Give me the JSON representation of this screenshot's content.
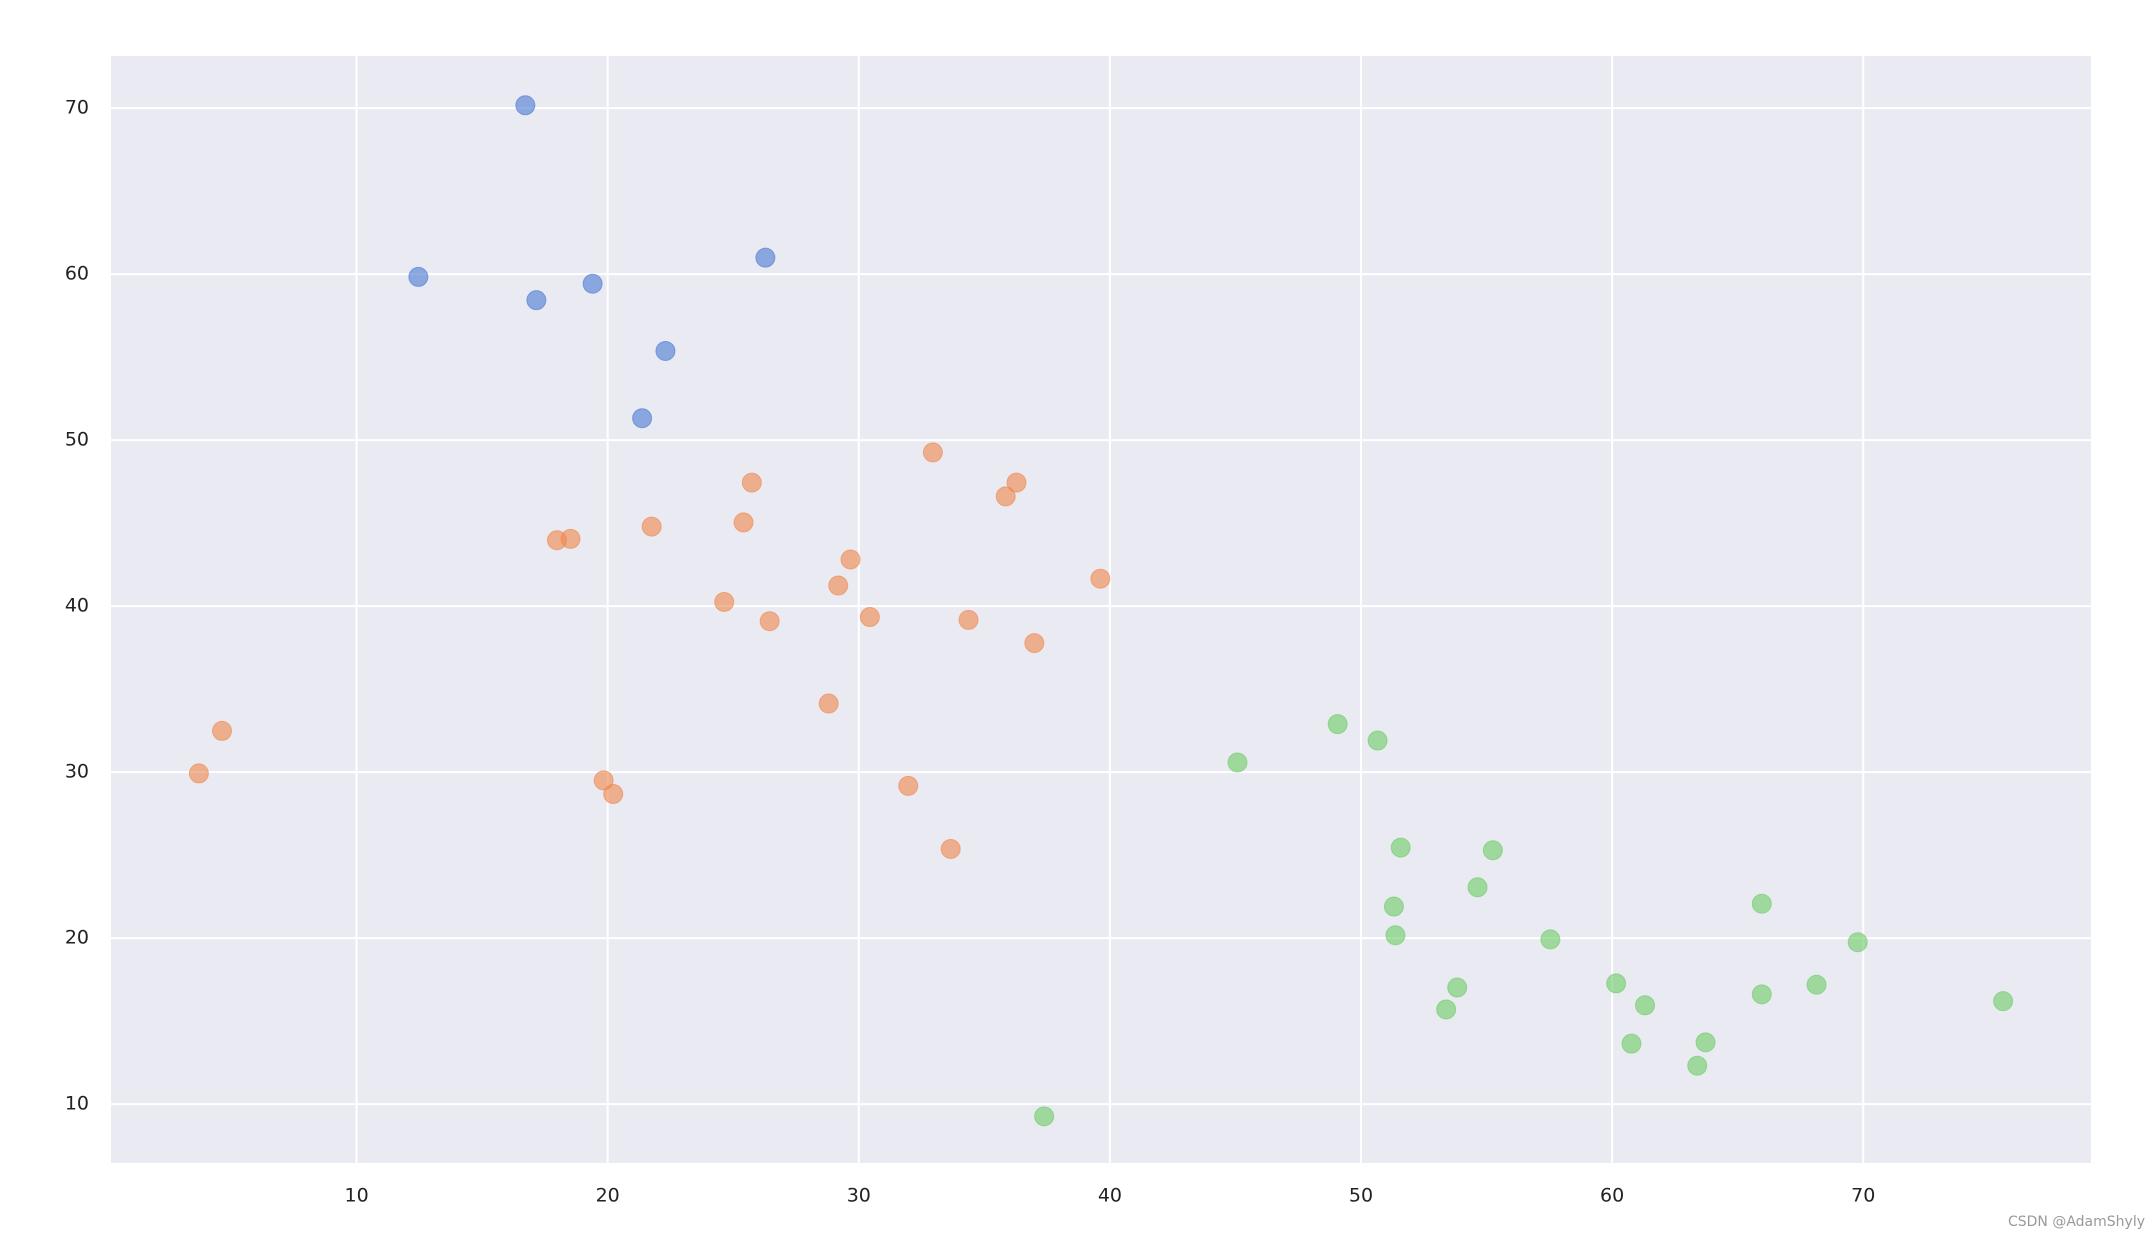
{
  "chart_data": {
    "type": "scatter",
    "xlim": [
      0.22,
      79.07
    ],
    "ylim": [
      6.45,
      73.14
    ],
    "xticks": [
      10,
      20,
      30,
      40,
      50,
      60,
      70
    ],
    "yticks": [
      10,
      20,
      30,
      40,
      50,
      60,
      70
    ],
    "grid": true,
    "series": [
      {
        "color": "#4878d0",
        "x": [
          16.72,
          12.46,
          17.16,
          19.4,
          26.28,
          22.3,
          21.37
        ],
        "values": [
          70.17,
          59.83,
          58.43,
          59.42,
          60.99,
          55.37,
          51.32
        ]
      },
      {
        "color": "#ee854a",
        "x": [
          3.72,
          4.64,
          17.98,
          18.52,
          19.84,
          20.22,
          21.75,
          24.64,
          25.41,
          25.74,
          26.45,
          28.8,
          29.18,
          29.67,
          30.44,
          31.97,
          32.95,
          33.66,
          34.37,
          35.85,
          36.28,
          36.99,
          39.62
        ],
        "values": [
          29.92,
          32.48,
          43.97,
          44.05,
          29.5,
          28.68,
          44.79,
          40.25,
          45.04,
          47.44,
          39.09,
          34.13,
          41.24,
          42.81,
          39.34,
          29.17,
          49.26,
          25.37,
          39.17,
          46.61,
          47.44,
          37.77,
          41.65
        ]
      },
      {
        "color": "#6acc64",
        "x": [
          45.08,
          49.07,
          50.66,
          51.58,
          51.31,
          51.37,
          53.39,
          53.83,
          54.64,
          55.25,
          57.54,
          60.16,
          60.77,
          61.31,
          63.39,
          63.72,
          65.96,
          65.96,
          68.14,
          69.78,
          75.57,
          37.38
        ],
        "values": [
          30.58,
          32.89,
          31.9,
          25.45,
          21.9,
          20.17,
          15.7,
          17.02,
          23.06,
          25.29,
          19.92,
          17.27,
          13.64,
          15.95,
          12.31,
          13.72,
          22.07,
          16.61,
          17.19,
          19.75,
          16.2,
          9.26
        ]
      }
    ]
  },
  "watermark": "CSDN @AdamShyly"
}
